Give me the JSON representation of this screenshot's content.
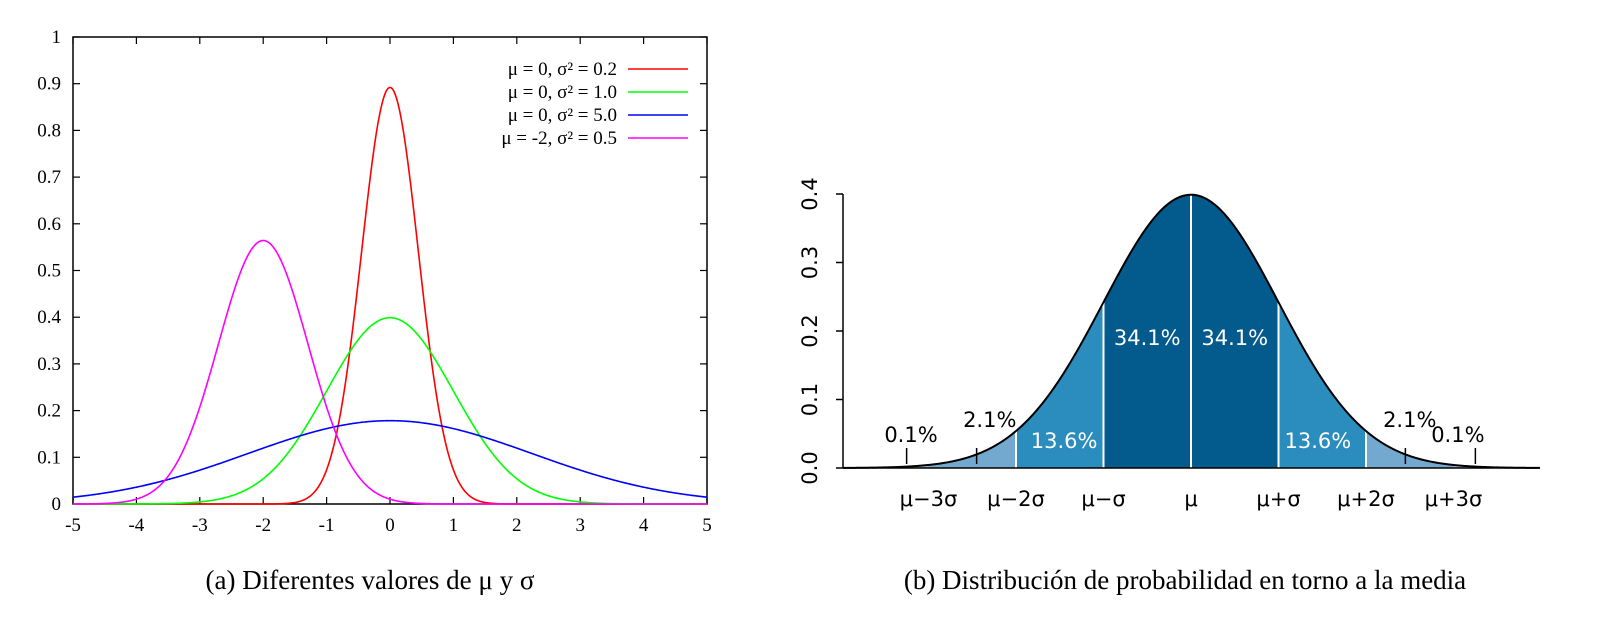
{
  "chart_data": [
    {
      "type": "line",
      "caption": "(a) Diferentes valores de μ y σ",
      "xlim": [
        -5,
        5
      ],
      "ylim": [
        0,
        1
      ],
      "xticks": [
        "-5",
        "-4",
        "-3",
        "-2",
        "-1",
        "0",
        "1",
        "2",
        "3",
        "4",
        "5"
      ],
      "yticks": [
        "0",
        "0.1",
        "0.2",
        "0.3",
        "0.4",
        "0.5",
        "0.6",
        "0.7",
        "0.8",
        "0.9",
        "1"
      ],
      "legend_position": "top-right",
      "series": [
        {
          "name": "μ = 0, σ² = 0.2",
          "mu": 0,
          "variance": 0.2,
          "color": "#ff0000",
          "x": [
            -2,
            -1.5,
            -1,
            -0.5,
            0,
            0.5,
            1,
            1.5,
            2
          ],
          "y": [
            0.0,
            0.004,
            0.073,
            0.478,
            0.892,
            0.478,
            0.073,
            0.004,
            0.0
          ]
        },
        {
          "name": "μ = 0, σ² = 1.0",
          "mu": 0,
          "variance": 1.0,
          "color": "#00ff00",
          "x": [
            -4,
            -3,
            -2,
            -1,
            0,
            1,
            2,
            3,
            4
          ],
          "y": [
            0.0001,
            0.004,
            0.054,
            0.242,
            0.399,
            0.242,
            0.054,
            0.004,
            0.0001
          ]
        },
        {
          "name": "μ = 0, σ² = 5.0",
          "mu": 0,
          "variance": 5.0,
          "color": "#0000ff",
          "x": [
            -5,
            -4,
            -3,
            -2,
            -1,
            0,
            1,
            2,
            3,
            4,
            5
          ],
          "y": [
            0.015,
            0.036,
            0.073,
            0.119,
            0.161,
            0.178,
            0.161,
            0.119,
            0.073,
            0.036,
            0.015
          ]
        },
        {
          "name": "μ = -2, σ² = 0.5",
          "mu": -2,
          "variance": 0.5,
          "color": "#ff00ff",
          "x": [
            -5,
            -4,
            -3,
            -2,
            -1,
            0,
            1
          ],
          "y": [
            0.0,
            0.01,
            0.208,
            0.564,
            0.208,
            0.01,
            0.0
          ]
        }
      ]
    },
    {
      "type": "area",
      "caption": "(b) Distribución de probabilidad en torno a la media",
      "xlim": [
        -3.9,
        3.9
      ],
      "ylim": [
        0,
        0.4
      ],
      "yticks": [
        "0.0",
        "0.1",
        "0.2",
        "0.3",
        "0.4"
      ],
      "xticks": [
        "μ−3σ",
        "μ−2σ",
        "μ−σ",
        "μ",
        "μ+σ",
        "μ+2σ",
        "μ+3σ"
      ],
      "x": [
        -3,
        -2,
        -1,
        0,
        1,
        2,
        3
      ],
      "y": [
        0.004,
        0.054,
        0.242,
        0.399,
        0.242,
        0.054,
        0.004
      ],
      "bands": [
        {
          "from": -1,
          "to": 0,
          "label": "34.1%",
          "color": "#035a8c"
        },
        {
          "from": 0,
          "to": 1,
          "label": "34.1%",
          "color": "#035a8c"
        },
        {
          "from": -2,
          "to": -1,
          "label": "13.6%",
          "color": "#2b8cbe"
        },
        {
          "from": 1,
          "to": 2,
          "label": "13.6%",
          "color": "#2b8cbe"
        },
        {
          "from": -3,
          "to": -2,
          "label": "2.1%",
          "color": "#74a9cf"
        },
        {
          "from": 2,
          "to": 3,
          "label": "2.1%",
          "color": "#74a9cf"
        },
        {
          "from": -4,
          "to": -3,
          "label": "0.1%",
          "color": "#a6bddb"
        },
        {
          "from": 3,
          "to": 4,
          "label": "0.1%",
          "color": "#a6bddb"
        }
      ]
    }
  ]
}
